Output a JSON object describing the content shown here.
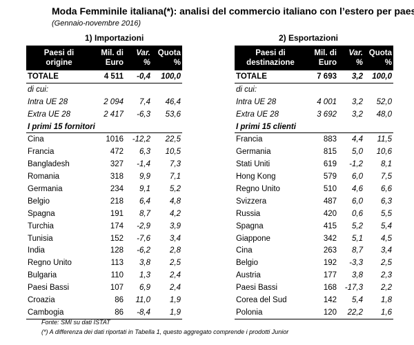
{
  "title": "Moda Femminile italiana(*): analisi del commercio italiano con l’estero per paese",
  "subtitle": "(Gennaio-novembre 2016)",
  "imports": {
    "section_title": "1) Importazioni",
    "headers": {
      "country": [
        "Paesi di",
        "origine"
      ],
      "value": [
        "Mil. di",
        "Euro"
      ],
      "var": [
        "Var.",
        "%"
      ],
      "share": [
        "Quota",
        "%"
      ]
    },
    "total": {
      "label": "TOTALE",
      "value": "4 511",
      "var": "-0,4",
      "share": "100,0"
    },
    "dicui": "di cui:",
    "intra": {
      "label": "Intra UE 28",
      "value": "2 094",
      "var": "7,4",
      "share": "46,4"
    },
    "extra": {
      "label": "Extra UE 28",
      "value": "2 417",
      "var": "-6,3",
      "share": "53,6"
    },
    "top_label": "I primi 15 fornitori",
    "rows": [
      {
        "country": "Cina",
        "value": "1016",
        "var": "-12,2",
        "share": "22,5"
      },
      {
        "country": "Francia",
        "value": "472",
        "var": "6,3",
        "share": "10,5"
      },
      {
        "country": "Bangladesh",
        "value": "327",
        "var": "-1,4",
        "share": "7,3"
      },
      {
        "country": "Romania",
        "value": "318",
        "var": "9,9",
        "share": "7,1"
      },
      {
        "country": "Germania",
        "value": "234",
        "var": "9,1",
        "share": "5,2"
      },
      {
        "country": "Belgio",
        "value": "218",
        "var": "6,4",
        "share": "4,8"
      },
      {
        "country": "Spagna",
        "value": "191",
        "var": "8,7",
        "share": "4,2"
      },
      {
        "country": "Turchia",
        "value": "174",
        "var": "-2,9",
        "share": "3,9"
      },
      {
        "country": "Tunisia",
        "value": "152",
        "var": "-7,6",
        "share": "3,4"
      },
      {
        "country": "India",
        "value": "128",
        "var": "-6,2",
        "share": "2,8"
      },
      {
        "country": "Regno Unito",
        "value": "113",
        "var": "3,8",
        "share": "2,5"
      },
      {
        "country": "Bulgaria",
        "value": "110",
        "var": "1,3",
        "share": "2,4"
      },
      {
        "country": "Paesi Bassi",
        "value": "107",
        "var": "6,9",
        "share": "2,4"
      },
      {
        "country": "Croazia",
        "value": "86",
        "var": "11,0",
        "share": "1,9"
      },
      {
        "country": "Cambogia",
        "value": "86",
        "var": "-8,4",
        "share": "1,9"
      }
    ]
  },
  "exports": {
    "section_title": "2) Esportazioni",
    "headers": {
      "country": [
        "Paesi di",
        "destinazione"
      ],
      "value": [
        "Mil. di",
        "Euro"
      ],
      "var": [
        "Var.",
        "%"
      ],
      "share": [
        "Quota",
        "%"
      ]
    },
    "total": {
      "label": "TOTALE",
      "value": "7 693",
      "var": "3,2",
      "share": "100,0"
    },
    "dicui": "di cui:",
    "intra": {
      "label": "Intra UE 28",
      "value": "4 001",
      "var": "3,2",
      "share": "52,0"
    },
    "extra": {
      "label": "Extra UE 28",
      "value": "3 692",
      "var": "3,2",
      "share": "48,0"
    },
    "top_label": "I primi 15 clienti",
    "rows": [
      {
        "country": "Francia",
        "value": "883",
        "var": "4,4",
        "share": "11,5"
      },
      {
        "country": "Germania",
        "value": "815",
        "var": "5,0",
        "share": "10,6"
      },
      {
        "country": "Stati Uniti",
        "value": "619",
        "var": "-1,2",
        "share": "8,1"
      },
      {
        "country": "Hong Kong",
        "value": "579",
        "var": "6,0",
        "share": "7,5"
      },
      {
        "country": "Regno Unito",
        "value": "510",
        "var": "4,6",
        "share": "6,6"
      },
      {
        "country": "Svizzera",
        "value": "487",
        "var": "6,0",
        "share": "6,3"
      },
      {
        "country": "Russia",
        "value": "420",
        "var": "0,6",
        "share": "5,5"
      },
      {
        "country": "Spagna",
        "value": "415",
        "var": "5,2",
        "share": "5,4"
      },
      {
        "country": "Giappone",
        "value": "342",
        "var": "5,1",
        "share": "4,5"
      },
      {
        "country": "Cina",
        "value": "263",
        "var": "8,7",
        "share": "3,4"
      },
      {
        "country": "Belgio",
        "value": "192",
        "var": "-3,3",
        "share": "2,5"
      },
      {
        "country": "Austria",
        "value": "177",
        "var": "3,8",
        "share": "2,3"
      },
      {
        "country": "Paesi Bassi",
        "value": "168",
        "var": "-17,3",
        "share": "2,2"
      },
      {
        "country": "Corea del Sud",
        "value": "142",
        "var": "5,4",
        "share": "1,8"
      },
      {
        "country": "Polonia",
        "value": "120",
        "var": "22,2",
        "share": "1,6"
      }
    ]
  },
  "notes": {
    "source": "Fonte: SMI su dati ISTAT",
    "footnote": "(*) A differenza dei dati riportati in Tabella 1, questo aggregato comprende i prodotti Junior"
  }
}
